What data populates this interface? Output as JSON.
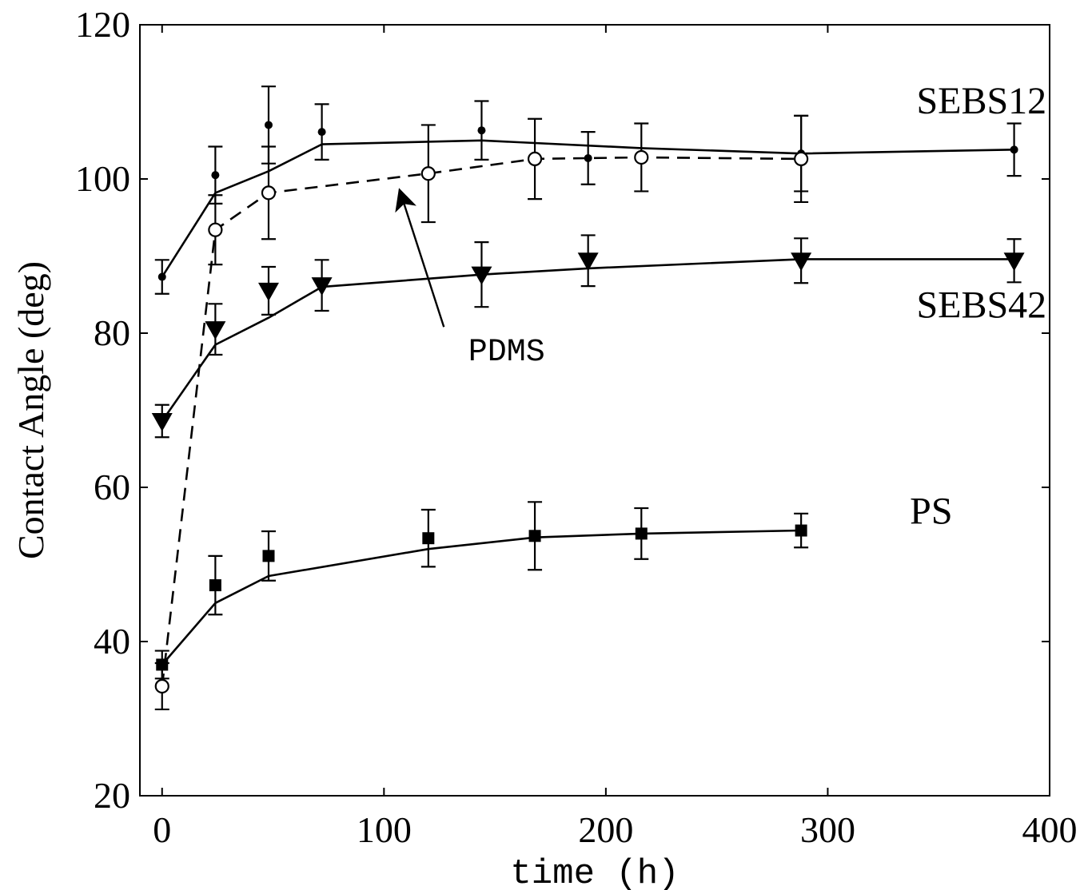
{
  "chart_data": {
    "type": "line",
    "xlabel": "time (h)",
    "ylabel": "Contact Angle (deg)",
    "xlim": [
      -10,
      400
    ],
    "ylim": [
      20,
      120
    ],
    "xticks": [
      0,
      100,
      200,
      300,
      400
    ],
    "yticks": [
      20,
      40,
      60,
      80,
      100,
      120
    ],
    "grid": false,
    "series": [
      {
        "name": "SEBS12",
        "marker": "dot",
        "line": "solid",
        "points": [
          {
            "x": 0,
            "y": 87.3,
            "err": 2.2
          },
          {
            "x": 24,
            "y": 100.5,
            "err": 3.7
          },
          {
            "x": 48,
            "y": 107.0,
            "err": 5.0
          },
          {
            "x": 72,
            "y": 106.1,
            "err": 3.6
          },
          {
            "x": 144,
            "y": 106.3,
            "err": 3.8
          },
          {
            "x": 192,
            "y": 102.7,
            "err": 3.4
          },
          {
            "x": 288,
            "y": 103.3,
            "err": 4.9
          },
          {
            "x": 384,
            "y": 103.8,
            "err": 3.4
          }
        ],
        "fit": [
          {
            "x": 0,
            "y": 87.3
          },
          {
            "x": 24,
            "y": 98.2
          },
          {
            "x": 48,
            "y": 101.0
          },
          {
            "x": 72,
            "y": 104.5
          },
          {
            "x": 144,
            "y": 105.0
          },
          {
            "x": 216,
            "y": 104.0
          },
          {
            "x": 288,
            "y": 103.3
          },
          {
            "x": 384,
            "y": 103.8
          }
        ]
      },
      {
        "name": "PDMS",
        "marker": "open-circle",
        "line": "dashed",
        "points": [
          {
            "x": 0,
            "y": 34.2,
            "err": 3.0
          },
          {
            "x": 24,
            "y": 93.4,
            "err": 4.5
          },
          {
            "x": 48,
            "y": 98.2,
            "err": 6.0
          },
          {
            "x": 120,
            "y": 100.7,
            "err": 6.3
          },
          {
            "x": 168,
            "y": 102.6,
            "err": 5.2
          },
          {
            "x": 216,
            "y": 102.8,
            "err": 4.4
          },
          {
            "x": 288,
            "y": 102.6,
            "err": 5.6
          }
        ]
      },
      {
        "name": "SEBS42",
        "marker": "down-triangle",
        "line": "solid",
        "points": [
          {
            "x": 0,
            "y": 68.6,
            "err": 2.1
          },
          {
            "x": 24,
            "y": 80.5,
            "err": 3.3
          },
          {
            "x": 48,
            "y": 85.5,
            "err": 3.1
          },
          {
            "x": 72,
            "y": 86.2,
            "err": 3.3
          },
          {
            "x": 144,
            "y": 87.6,
            "err": 4.2
          },
          {
            "x": 192,
            "y": 89.4,
            "err": 3.3
          },
          {
            "x": 288,
            "y": 89.4,
            "err": 2.9
          },
          {
            "x": 384,
            "y": 89.4,
            "err": 2.8
          }
        ],
        "fit": [
          {
            "x": 0,
            "y": 68.6
          },
          {
            "x": 24,
            "y": 78.5
          },
          {
            "x": 48,
            "y": 82.0
          },
          {
            "x": 72,
            "y": 86.0
          },
          {
            "x": 144,
            "y": 87.6
          },
          {
            "x": 192,
            "y": 88.4
          },
          {
            "x": 288,
            "y": 89.6
          },
          {
            "x": 384,
            "y": 89.6
          }
        ]
      },
      {
        "name": "PS",
        "marker": "square",
        "line": "solid",
        "points": [
          {
            "x": 0,
            "y": 37.0,
            "err": 1.8
          },
          {
            "x": 24,
            "y": 47.3,
            "err": 3.8
          },
          {
            "x": 48,
            "y": 51.1,
            "err": 3.2
          },
          {
            "x": 120,
            "y": 53.4,
            "err": 3.7
          },
          {
            "x": 168,
            "y": 53.7,
            "err": 4.4
          },
          {
            "x": 216,
            "y": 54.0,
            "err": 3.3
          },
          {
            "x": 288,
            "y": 54.4,
            "err": 2.2
          }
        ],
        "fit": [
          {
            "x": 0,
            "y": 37.0
          },
          {
            "x": 24,
            "y": 45.0
          },
          {
            "x": 48,
            "y": 48.5
          },
          {
            "x": 120,
            "y": 52.0
          },
          {
            "x": 168,
            "y": 53.5
          },
          {
            "x": 216,
            "y": 54.0
          },
          {
            "x": 288,
            "y": 54.4
          }
        ]
      }
    ],
    "annotations": [
      {
        "text": "SEBS12",
        "x": 340,
        "y": 108.5
      },
      {
        "text": "SEBS42",
        "x": 340,
        "y": 82.0
      },
      {
        "text": "PS",
        "x": 337,
        "y": 55.3
      },
      {
        "text": "PDMS",
        "x": 138,
        "y": 76.5,
        "arrow_to": {
          "x": 107,
          "y": 98.6
        },
        "arrow_from": {
          "x": 127,
          "y": 80.8
        }
      }
    ]
  }
}
